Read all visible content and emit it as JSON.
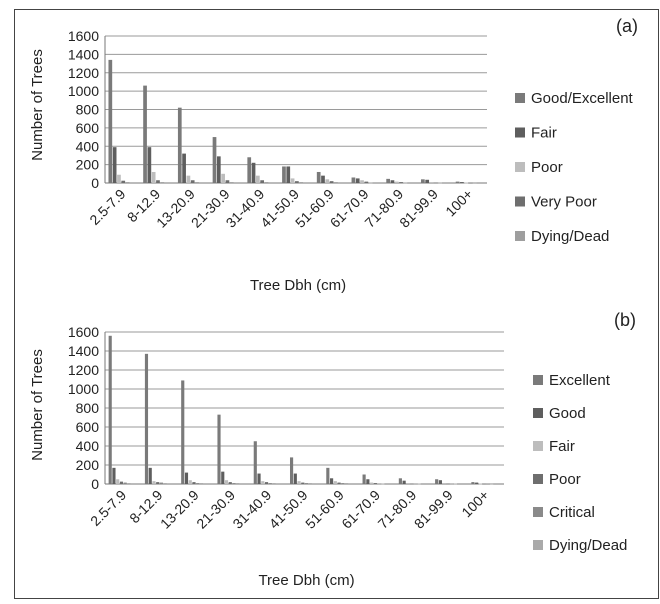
{
  "chart_data": [
    {
      "type": "bar",
      "panel_label": "(a)",
      "xlabel": "Tree Dbh (cm)",
      "ylabel": "Number of Trees",
      "ylim": [
        0,
        1600
      ],
      "yticks": [
        "0",
        "200",
        "400",
        "600",
        "800",
        "1000",
        "1200",
        "1400",
        "1600"
      ],
      "grid": true,
      "legend_position": "right",
      "categories": [
        "2.5-7.9",
        "8-12.9",
        "13-20.9",
        "21-30.9",
        "31-40.9",
        "41-50.9",
        "51-60.9",
        "61-70.9",
        "71-80.9",
        "81-99.9",
        "100+"
      ],
      "series": [
        {
          "name": "Good/Excellent",
          "color": "#7a7a7a",
          "values": [
            1340,
            1060,
            820,
            500,
            280,
            180,
            120,
            60,
            45,
            40,
            15
          ]
        },
        {
          "name": "Fair",
          "color": "#5e5e5e",
          "values": [
            390,
            390,
            320,
            290,
            220,
            180,
            80,
            50,
            30,
            35,
            10
          ]
        },
        {
          "name": "Poor",
          "color": "#bdbdbd",
          "values": [
            90,
            120,
            80,
            100,
            80,
            50,
            40,
            30,
            15,
            10,
            5
          ]
        },
        {
          "name": "Very Poor",
          "color": "#6e6e6e",
          "values": [
            25,
            30,
            30,
            30,
            30,
            20,
            20,
            15,
            10,
            5,
            3
          ]
        },
        {
          "name": "Dying/Dead",
          "color": "#9e9e9e",
          "values": [
            10,
            10,
            10,
            10,
            10,
            10,
            10,
            5,
            5,
            5,
            2
          ]
        }
      ]
    },
    {
      "type": "bar",
      "panel_label": "(b)",
      "xlabel": "Tree Dbh (cm)",
      "ylabel": "Number of Trees",
      "ylim": [
        0,
        1600
      ],
      "yticks": [
        "0",
        "200",
        "400",
        "600",
        "800",
        "1000",
        "1200",
        "1400",
        "1600"
      ],
      "grid": true,
      "legend_position": "right",
      "categories": [
        "2.5-7.9",
        "8-12.9",
        "13-20.9",
        "21-30.9",
        "31-40.9",
        "41-50.9",
        "51-60.9",
        "61-70.9",
        "71-80.9",
        "81-99.9",
        "100+"
      ],
      "series": [
        {
          "name": "Excellent",
          "color": "#7a7a7a",
          "values": [
            1560,
            1370,
            1090,
            730,
            450,
            280,
            170,
            100,
            60,
            50,
            20
          ]
        },
        {
          "name": "Good",
          "color": "#5e5e5e",
          "values": [
            170,
            170,
            120,
            130,
            110,
            110,
            60,
            50,
            35,
            40,
            15
          ]
        },
        {
          "name": "Fair",
          "color": "#bdbdbd",
          "values": [
            50,
            30,
            40,
            40,
            30,
            30,
            30,
            15,
            10,
            10,
            5
          ]
        },
        {
          "name": "Poor",
          "color": "#6e6e6e",
          "values": [
            25,
            20,
            20,
            20,
            20,
            15,
            15,
            10,
            5,
            5,
            3
          ]
        },
        {
          "name": "Critical",
          "color": "#8a8a8a",
          "values": [
            15,
            15,
            10,
            10,
            10,
            10,
            10,
            5,
            5,
            5,
            2
          ]
        },
        {
          "name": "Dying/Dead",
          "color": "#aaaaaa",
          "values": [
            10,
            10,
            10,
            10,
            10,
            10,
            10,
            5,
            5,
            5,
            2
          ]
        }
      ]
    }
  ]
}
